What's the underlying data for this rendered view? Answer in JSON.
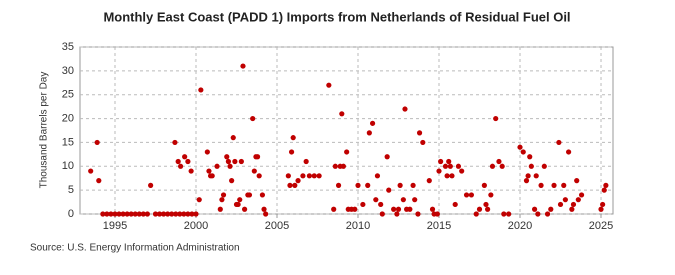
{
  "chart_data": {
    "type": "scatter",
    "title": "Monthly East Coast (PADD 1) Imports from Netherlands of Residual Fuel Oil",
    "y_label": "Thousand Barrels per Day",
    "source": "Source: U.S. Energy Information Administration",
    "color": "#c00000",
    "grid": true,
    "xlim": [
      1992.84,
      2025.74
    ],
    "xticks": [
      1995,
      2000,
      2005,
      2010,
      2015,
      2020,
      2025
    ],
    "ylim": [
      0,
      35
    ],
    "yticks": [
      0,
      5,
      10,
      15,
      20,
      25,
      30,
      35
    ],
    "x": [
      1993.5,
      1993.9,
      1994.0,
      1994.25,
      1994.5,
      1994.75,
      1995.0,
      1995.25,
      1995.5,
      1995.75,
      1996.0,
      1996.25,
      1996.5,
      1996.75,
      1997.0,
      1997.5,
      1997.75,
      1998.0,
      1998.25,
      1998.5,
      1998.75,
      1999.0,
      1999.25,
      1999.5,
      1999.75,
      2000.0,
      1997.2,
      1998.7,
      1998.9,
      1999.05,
      1999.3,
      1999.5,
      1999.7,
      2000.2,
      2000.3,
      2000.7,
      2000.8,
      2000.9,
      2001.0,
      2001.3,
      2001.5,
      2001.6,
      2001.7,
      2001.9,
      2002.0,
      2002.1,
      2002.2,
      2002.3,
      2002.4,
      2002.5,
      2002.6,
      2002.7,
      2002.8,
      2002.9,
      2003.0,
      2003.2,
      2003.3,
      2003.5,
      2003.6,
      2003.7,
      2003.8,
      2003.9,
      2004.1,
      2004.2,
      2004.3,
      2005.7,
      2005.8,
      2005.9,
      2006.0,
      2006.1,
      2006.3,
      2006.6,
      2006.8,
      2007.0,
      2007.3,
      2007.6,
      2008.2,
      2008.5,
      2008.6,
      2008.8,
      2008.9,
      2009.0,
      2009.1,
      2009.3,
      2009.4,
      2009.6,
      2009.8,
      2010.0,
      2010.3,
      2010.6,
      2010.7,
      2010.9,
      2011.1,
      2011.2,
      2011.4,
      2011.5,
      2011.8,
      2011.9,
      2012.2,
      2012.4,
      2012.5,
      2012.6,
      2012.8,
      2012.9,
      2013.0,
      2013.2,
      2013.4,
      2013.5,
      2013.7,
      2013.8,
      2014.0,
      2014.4,
      2014.6,
      2014.7,
      2014.9,
      2015.0,
      2015.1,
      2015.4,
      2015.5,
      2015.6,
      2015.7,
      2015.8,
      2016.0,
      2016.2,
      2016.4,
      2016.7,
      2017.0,
      2017.3,
      2017.5,
      2017.8,
      2017.9,
      2018.0,
      2018.2,
      2018.3,
      2018.5,
      2018.7,
      2018.9,
      2019.0,
      2019.3,
      2020.0,
      2020.2,
      2020.4,
      2020.5,
      2020.6,
      2020.7,
      2020.9,
      2021.0,
      2021.1,
      2021.3,
      2021.5,
      2021.7,
      2021.9,
      2022.1,
      2022.4,
      2022.5,
      2022.7,
      2022.8,
      2023.0,
      2023.2,
      2023.3,
      2023.5,
      2023.6,
      2023.8,
      2025.0,
      2025.1,
      2025.2,
      2025.3
    ],
    "values": [
      9,
      15,
      7,
      0,
      0,
      0,
      0,
      0,
      0,
      0,
      0,
      0,
      0,
      0,
      0,
      0,
      0,
      0,
      0,
      0,
      0,
      0,
      0,
      0,
      0,
      0,
      6,
      15,
      11,
      10,
      12,
      11,
      9,
      3,
      26,
      13,
      9,
      8,
      8,
      10,
      1,
      3,
      4,
      12,
      11,
      10,
      7,
      16,
      11,
      2,
      2,
      3,
      11,
      31,
      1,
      4,
      4,
      20,
      9,
      12,
      12,
      8,
      4,
      1,
      0,
      8,
      6,
      13,
      16,
      6,
      7,
      8,
      11,
      8,
      8,
      8,
      27,
      1,
      10,
      6,
      10,
      21,
      10,
      13,
      1,
      1,
      1,
      6,
      2,
      6,
      17,
      19,
      3,
      8,
      2,
      0,
      12,
      5,
      1,
      0,
      1,
      6,
      3,
      22,
      1,
      1,
      6,
      3,
      0,
      17,
      15,
      7,
      1,
      0,
      0,
      9,
      11,
      10,
      8,
      11,
      10,
      8,
      2,
      10,
      9,
      4,
      4,
      0,
      1,
      6,
      2,
      1,
      4,
      10,
      20,
      11,
      10,
      0,
      0,
      14,
      13,
      7,
      8,
      12,
      10,
      1,
      8,
      0,
      6,
      10,
      0,
      1,
      6,
      15,
      2,
      6,
      3,
      13,
      1,
      2,
      7,
      3,
      4,
      1,
      2,
      5,
      6
    ]
  }
}
